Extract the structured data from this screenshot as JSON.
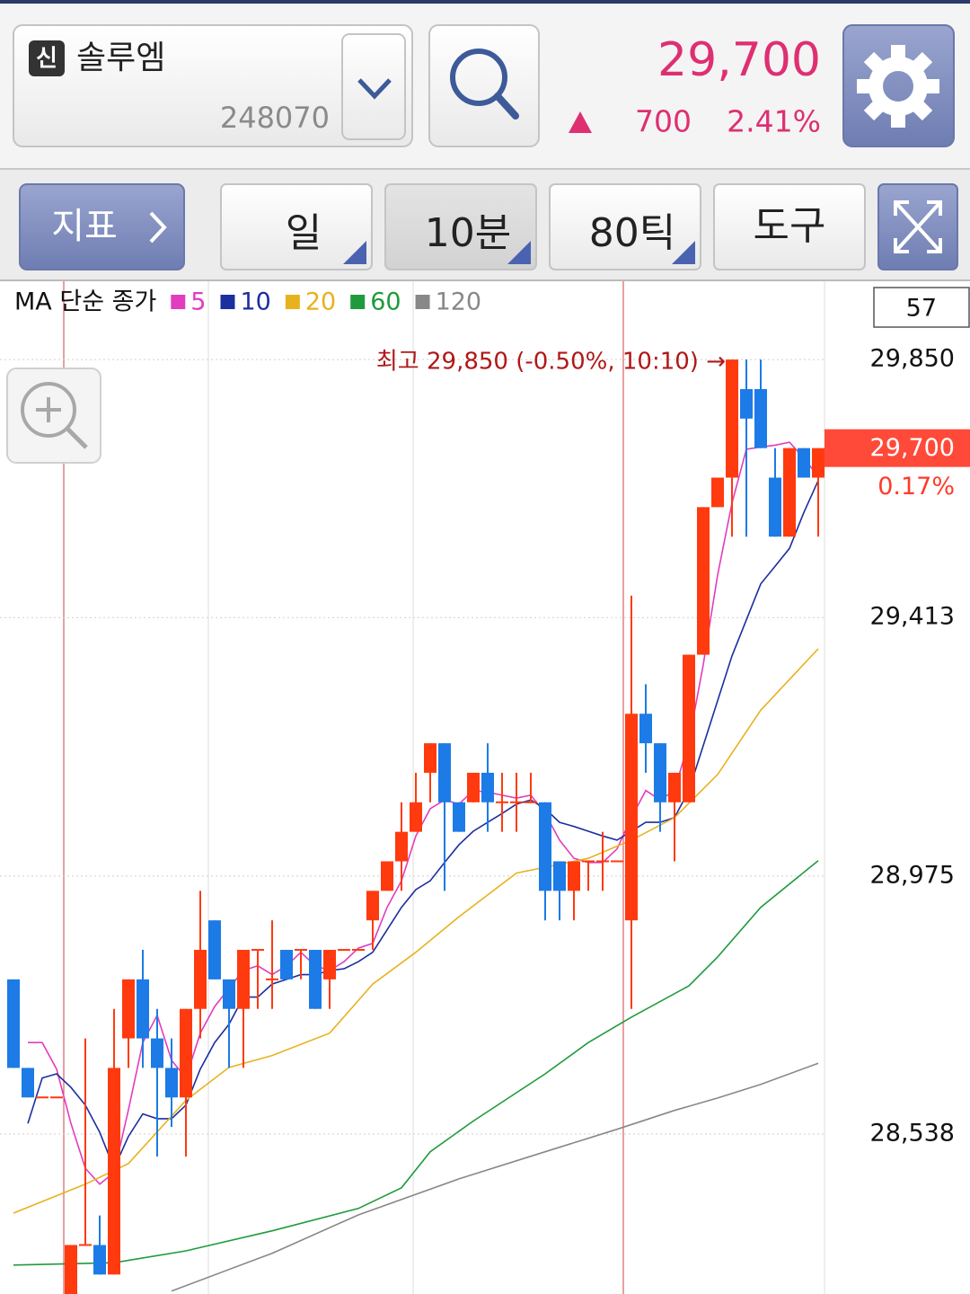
{
  "header": {
    "badge": "신",
    "name": "솔루엠",
    "code": "248070",
    "price": "29,700",
    "change": "700",
    "change_pct": "2.41%"
  },
  "toolbar": {
    "indicator": "지표",
    "periods": [
      "일",
      "10분",
      "80틱"
    ],
    "tools": "도구"
  },
  "chart_data": {
    "type": "candlestick",
    "legend_title": "MA 단순 종가",
    "count": 57,
    "ylim": [
      28267,
      29972
    ],
    "yticks": [
      {
        "value": 28538,
        "label": "28,538"
      },
      {
        "value": 28975,
        "label": "28,975"
      },
      {
        "value": 29413,
        "label": "29,413"
      },
      {
        "value": 29850,
        "label": "29,850"
      }
    ],
    "grid": true,
    "up_color": "#ff3a0f",
    "down_color": "#1c7be6",
    "open": [
      28800,
      28650,
      28600,
      28600,
      28250,
      28350,
      28350,
      28300,
      28700,
      28800,
      28700,
      28650,
      28600,
      28750,
      28900,
      28800,
      28750,
      28850,
      28800,
      28850,
      28850,
      28850,
      28800,
      28850,
      28850,
      28900,
      28950,
      29000,
      29050,
      29150,
      29200,
      29100,
      29100,
      29150,
      29100,
      29100,
      29100,
      29100,
      29000,
      28950,
      29000,
      29000,
      29000,
      28900,
      29250,
      29200,
      29100,
      29100,
      29350,
      29600,
      29650,
      29800,
      29800,
      29650,
      29550,
      29700,
      29650
    ],
    "high": [
      28800,
      28650,
      28600,
      28600,
      28350,
      28700,
      28400,
      28750,
      28800,
      28850,
      28750,
      28700,
      28750,
      28950,
      28900,
      28800,
      28850,
      28850,
      28900,
      28850,
      28850,
      28850,
      28850,
      28850,
      28850,
      28950,
      29000,
      29100,
      29150,
      29200,
      29200,
      29100,
      29150,
      29200,
      29150,
      29150,
      29150,
      29100,
      29000,
      29000,
      29000,
      29050,
      29000,
      29450,
      29300,
      29200,
      29150,
      29350,
      29600,
      29650,
      29850,
      29850,
      29850,
      29700,
      29700,
      29700,
      29700
    ],
    "low": [
      28650,
      28600,
      28600,
      28600,
      28250,
      28350,
      28300,
      28300,
      28650,
      28650,
      28500,
      28550,
      28500,
      28700,
      28800,
      28650,
      28650,
      28750,
      28750,
      28800,
      28800,
      28750,
      28750,
      28850,
      28850,
      28850,
      28950,
      28950,
      29050,
      29100,
      28950,
      29050,
      29100,
      29050,
      29050,
      29050,
      29100,
      28900,
      28900,
      28900,
      28950,
      28950,
      29000,
      28750,
      29150,
      29050,
      29000,
      29100,
      29350,
      29600,
      29550,
      29550,
      29700,
      29550,
      29550,
      29650,
      29550
    ],
    "close": [
      28650,
      28600,
      28600,
      28600,
      28350,
      28350,
      28300,
      28650,
      28800,
      28700,
      28650,
      28600,
      28750,
      28850,
      28800,
      28750,
      28850,
      28850,
      28800,
      28800,
      28850,
      28750,
      28850,
      28850,
      28850,
      28950,
      29000,
      29050,
      29100,
      29200,
      29100,
      29050,
      29150,
      29100,
      29100,
      29100,
      29100,
      28950,
      28950,
      29000,
      29000,
      29000,
      29000,
      29250,
      29200,
      29100,
      29150,
      29350,
      29600,
      29650,
      29850,
      29750,
      29700,
      29550,
      29700,
      29650,
      29700
    ],
    "series": [
      {
        "name": "5",
        "color": "#e23cc0",
        "values": [
          null,
          28693,
          28693,
          28648,
          28556,
          28480,
          28453,
          28473,
          28579,
          28693,
          28739,
          28663,
          28633,
          28709,
          28754,
          28785,
          28815,
          28823,
          28808,
          28823,
          28846,
          28823,
          28815,
          28830,
          28853,
          28861,
          28922,
          28967,
          29043,
          29089,
          29104,
          29097,
          29120,
          29117,
          29112,
          29107,
          29112,
          29081,
          29036,
          29005,
          28998,
          28998,
          29021,
          29074,
          29120,
          29104,
          29120,
          29203,
          29333,
          29485,
          29607,
          29698,
          29702,
          29705,
          29710,
          29683,
          29652
        ]
      },
      {
        "name": "10",
        "color": "#1b2f9e",
        "values": [
          null,
          28556,
          28633,
          28640,
          28617,
          28587,
          28541,
          28480,
          28534,
          28572,
          28564,
          28564,
          28587,
          28648,
          28693,
          28724,
          28770,
          28770,
          28792,
          28800,
          28808,
          28808,
          28815,
          28818,
          28830,
          28846,
          28884,
          28922,
          28952,
          28967,
          28998,
          29028,
          29051,
          29066,
          29081,
          29097,
          29104,
          29089,
          29066,
          29059,
          29051,
          29043,
          29036,
          29051,
          29066,
          29066,
          29074,
          29120,
          29196,
          29272,
          29348,
          29409,
          29470,
          29500,
          29530,
          29591,
          29645
        ]
      },
      {
        "name": "20",
        "color": "#e8b21e",
        "x": [
          0,
          5,
          8,
          12,
          15,
          18,
          22,
          25,
          28,
          31,
          35,
          40,
          43,
          46,
          49,
          52,
          56
        ],
        "values": [
          28404,
          28453,
          28488,
          28595,
          28651,
          28671,
          28709,
          28792,
          28846,
          28906,
          28980,
          29005,
          29036,
          29074,
          29147,
          29256,
          29360
        ]
      },
      {
        "name": "60",
        "color": "#1f9b3b",
        "x": [
          0,
          7,
          12,
          18,
          24,
          27,
          29,
          32,
          37,
          40,
          43,
          47,
          49,
          52,
          56
        ],
        "values": [
          28316,
          28320,
          28340,
          28374,
          28412,
          28447,
          28508,
          28560,
          28640,
          28693,
          28736,
          28789,
          28838,
          28922,
          29001
        ]
      },
      {
        "name": "120",
        "color": "#888888",
        "x": [
          11,
          18,
          24,
          31,
          37,
          42,
          46,
          49,
          52,
          56
        ],
        "values": [
          28272,
          28336,
          28401,
          28462,
          28508,
          28546,
          28578,
          28599,
          28622,
          28658
        ]
      }
    ],
    "high_note": {
      "value": 29850,
      "label": "최고 29,850 (-0.50%, 10:10) →"
    },
    "last_price": {
      "value": 29700,
      "label": "29,700"
    },
    "last_change": "0.17%"
  }
}
